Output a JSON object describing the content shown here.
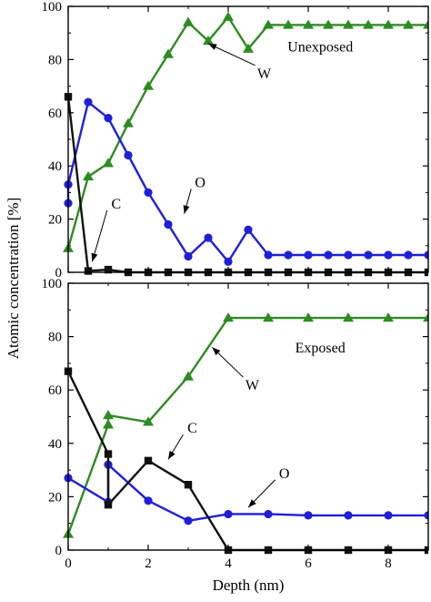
{
  "colors": {
    "W": "#2e8b22",
    "O": "#1f1fd8",
    "C": "#111111"
  },
  "shared_axes": {
    "xlabel": "Depth (nm)",
    "ylabel": "Atomic concentration [%]"
  },
  "chart_data": [
    {
      "type": "line",
      "label": "Unexposed",
      "xlim": [
        0,
        9
      ],
      "ylim": [
        0,
        100
      ],
      "x_ticks": [
        "0",
        "2",
        "4",
        "6",
        "8"
      ],
      "y_ticks": [
        "0",
        "20",
        "40",
        "60",
        "80",
        "100"
      ],
      "series": [
        {
          "name": "W",
          "marker": "triangle",
          "x": [
            0,
            0.5,
            1,
            1.5,
            2,
            2.5,
            3,
            3.5,
            4,
            4.5,
            5,
            5.5,
            6,
            6.5,
            7,
            7.5,
            8,
            8.5,
            9
          ],
          "y": [
            9,
            36,
            41,
            56,
            70,
            82,
            94,
            87,
            96,
            84,
            93,
            93,
            93,
            93,
            93,
            93,
            93,
            93,
            93
          ]
        },
        {
          "name": "O",
          "marker": "circle",
          "x": [
            0,
            0,
            0.5,
            1,
            1.5,
            2,
            2.5,
            3,
            3.5,
            4,
            4.5,
            5,
            5.5,
            6,
            6.5,
            7,
            7.5,
            8,
            8.5,
            9
          ],
          "y": [
            26,
            33,
            64,
            58,
            44,
            30,
            18,
            6,
            13,
            4,
            16,
            6.5,
            6.5,
            6.5,
            6.5,
            6.5,
            6.5,
            6.5,
            6.5,
            6.5
          ]
        },
        {
          "name": "C",
          "marker": "square",
          "x": [
            0,
            0.5,
            1,
            1.5,
            2,
            2.5,
            3,
            3.5,
            4,
            4.5,
            5,
            5.5,
            6,
            6.5,
            7,
            7.5,
            8,
            8.5,
            9
          ],
          "y": [
            66,
            0.5,
            1,
            0,
            0,
            0,
            0,
            0,
            0,
            0,
            0,
            0,
            0,
            0,
            0,
            0,
            0,
            0,
            0
          ]
        }
      ],
      "annotations": [
        {
          "text": "W",
          "tx": 4.9,
          "ty": 73,
          "ax": 3.5,
          "ay": 86
        },
        {
          "text": "O",
          "tx": 3.3,
          "ty": 32,
          "ax": 2.9,
          "ay": 22
        },
        {
          "text": "C",
          "tx": 1.2,
          "ty": 24,
          "ax": 0.6,
          "ay": 4
        }
      ],
      "panel_label_pos": {
        "x": 6.3,
        "y": 83
      }
    },
    {
      "type": "line",
      "label": "Exposed",
      "xlim": [
        0,
        9
      ],
      "ylim": [
        0,
        100
      ],
      "x_ticks": [
        "0",
        "2",
        "4",
        "6",
        "8"
      ],
      "y_ticks": [
        "0",
        "20",
        "40",
        "60",
        "80",
        "100"
      ],
      "series": [
        {
          "name": "W",
          "marker": "triangle",
          "x": [
            0,
            1,
            1,
            2,
            3,
            4,
            5,
            6,
            7,
            8,
            9
          ],
          "y": [
            6,
            47,
            50.5,
            48,
            65,
            87,
            87,
            87,
            87,
            87,
            87
          ]
        },
        {
          "name": "O",
          "marker": "circle",
          "x": [
            0,
            1,
            1,
            2,
            3,
            4,
            5,
            6,
            7,
            8,
            9
          ],
          "y": [
            27,
            18,
            32,
            18.5,
            11,
            13.5,
            13.5,
            13,
            13,
            13,
            13
          ]
        },
        {
          "name": "C",
          "marker": "square",
          "x": [
            0,
            1,
            1,
            2,
            3,
            4,
            5,
            6,
            7,
            8,
            9
          ],
          "y": [
            67,
            36,
            17,
            33.5,
            24.5,
            0,
            0,
            0,
            0,
            0,
            0
          ]
        }
      ],
      "annotations": [
        {
          "text": "W",
          "tx": 4.6,
          "ty": 60,
          "ax": 3.6,
          "ay": 76
        },
        {
          "text": "C",
          "tx": 3.1,
          "ty": 44,
          "ax": 2.5,
          "ay": 34
        },
        {
          "text": "O",
          "tx": 5.4,
          "ty": 27,
          "ax": 4.5,
          "ay": 16
        }
      ],
      "panel_label_pos": {
        "x": 6.3,
        "y": 74
      }
    }
  ]
}
